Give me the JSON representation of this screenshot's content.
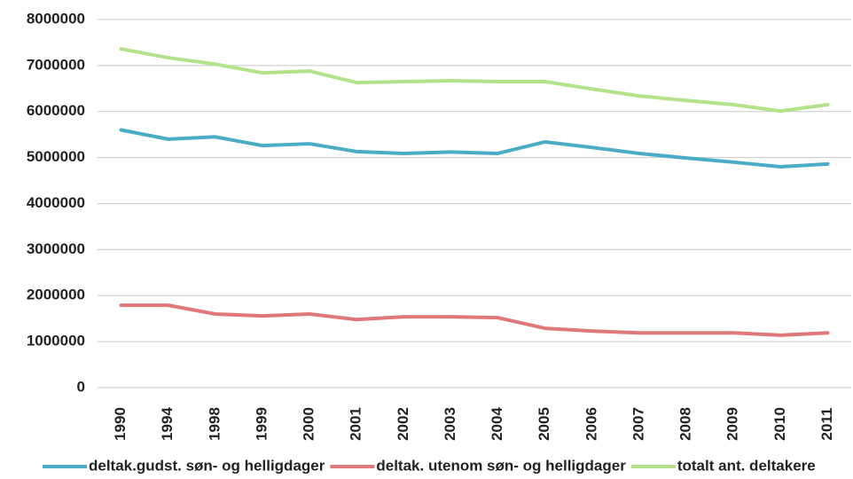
{
  "chart_data": {
    "type": "line",
    "categories": [
      "1990",
      "1994",
      "1998",
      "1999",
      "2000",
      "2001",
      "2002",
      "2003",
      "2004",
      "2005",
      "2006",
      "2007",
      "2008",
      "2009",
      "2010",
      "2011"
    ],
    "series": [
      {
        "name": "deltak.gudst. søn- og helligdager",
        "color": "#4bacc6",
        "values": [
          5600000,
          5400000,
          5450000,
          5260000,
          5300000,
          5130000,
          5090000,
          5120000,
          5090000,
          5340000,
          5220000,
          5090000,
          4990000,
          4900000,
          4800000,
          4860000
        ]
      },
      {
        "name": "deltak. utenom søn- og helligdager",
        "color": "#e0787a",
        "values": [
          1790000,
          1790000,
          1600000,
          1560000,
          1600000,
          1480000,
          1540000,
          1540000,
          1520000,
          1290000,
          1230000,
          1190000,
          1190000,
          1190000,
          1140000,
          1190000
        ]
      },
      {
        "name": "totalt ant. deltakere",
        "color": "#b4e28a",
        "values": [
          7360000,
          7170000,
          7030000,
          6840000,
          6880000,
          6630000,
          6650000,
          6670000,
          6650000,
          6650000,
          6490000,
          6340000,
          6240000,
          6150000,
          6010000,
          6150000
        ]
      }
    ],
    "ylim": [
      0,
      8000000
    ],
    "yticks": [
      0,
      1000000,
      2000000,
      3000000,
      4000000,
      5000000,
      6000000,
      7000000,
      8000000
    ],
    "grid": true,
    "legend": "bottom"
  }
}
